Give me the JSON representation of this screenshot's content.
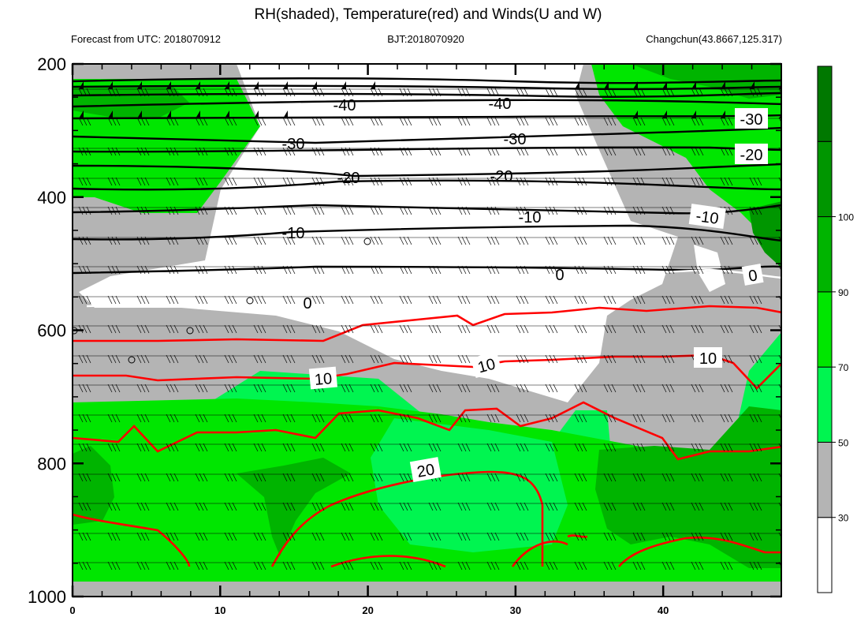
{
  "chart_data": {
    "type": "contour",
    "title": "RH(shaded), Temperature(red) and Winds(U and W)",
    "subtitle_left": "Forecast from UTC: 2018070912",
    "subtitle_center": "BJT:2018070920",
    "subtitle_right": "Changchun(43.8667,125.317)",
    "x_ticks": [
      0,
      10,
      20,
      30,
      40
    ],
    "x_range": [
      0,
      48
    ],
    "y_ticks": [
      200,
      400,
      600,
      800,
      1000
    ],
    "y_range": [
      1000,
      200
    ],
    "colorbar": {
      "levels": [
        30,
        50,
        70,
        90,
        100
      ],
      "colors": [
        "#ffffff",
        "#b4b4b4",
        "#00f550",
        "#00e600",
        "#00b400",
        "#009600",
        "#007800"
      ]
    },
    "isotherms": [
      {
        "label": "-40",
        "value": -40,
        "color": "#000000"
      },
      {
        "label": "-30",
        "value": -30,
        "color": "#000000"
      },
      {
        "label": "-20",
        "value": -20,
        "color": "#000000"
      },
      {
        "label": "-10",
        "value": -10,
        "color": "#000000"
      },
      {
        "label": "0",
        "value": 0,
        "color": "#ffffff"
      },
      {
        "label": "10",
        "value": 10,
        "color": "#ff0000"
      },
      {
        "label": "20",
        "value": 20,
        "color": "#ff0000"
      }
    ]
  }
}
